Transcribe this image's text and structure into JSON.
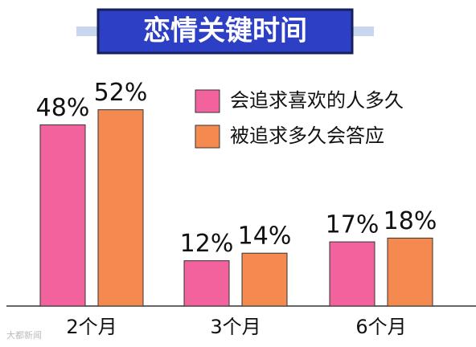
{
  "chart_data": {
    "type": "bar",
    "title": "恋情关键时间",
    "categories": [
      "2个月",
      "3个月",
      "6个月"
    ],
    "series": [
      {
        "name": "会追求喜欢的人多久",
        "color": "#f2639e",
        "values": [
          48,
          12,
          17
        ],
        "value_labels": [
          "48%",
          "12%",
          "17%"
        ]
      },
      {
        "name": "被追求多久会答应",
        "color": "#f58a50",
        "values": [
          52,
          14,
          18
        ],
        "value_labels": [
          "52%",
          "14%",
          "18%"
        ]
      }
    ],
    "watermark": "大都新闻"
  }
}
